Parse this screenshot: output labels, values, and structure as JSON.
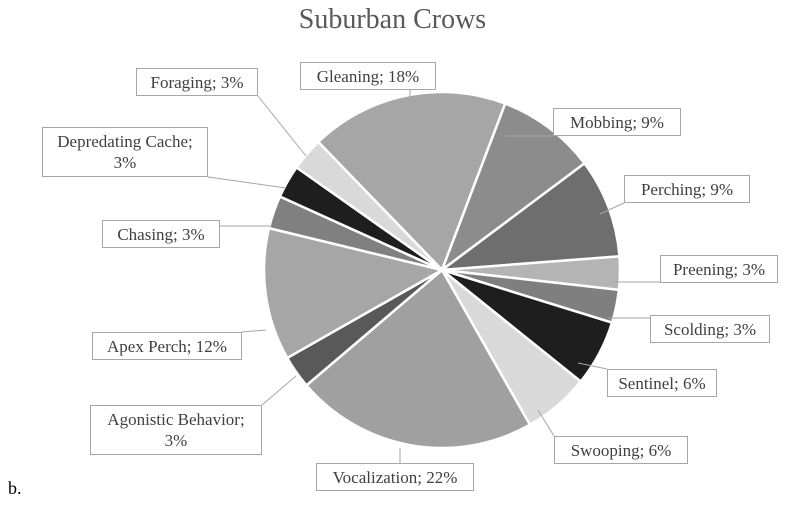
{
  "chart_data": {
    "type": "pie",
    "title": "Suburban Crows",
    "values": [
      18,
      9,
      9,
      3,
      3,
      6,
      6,
      22,
      3,
      12,
      3,
      3,
      3
    ],
    "value_labels": [
      "Gleaning; 18%",
      "Mobbing; 9%",
      "Perching; 9%",
      "Preening; 3%",
      "Scolding; 3%",
      "Sentinel; 6%",
      "Swooping; 6%",
      "Vocalization; 22%",
      "Agonistic Behavior;\n3%",
      "Apex Perch; 12%",
      "Chasing; 3%",
      "Depredating Cache;\n3%",
      "Foraging; 3%"
    ],
    "colors": [
      "#a6a6a6",
      "#8c8c8c",
      "#6e6e6e",
      "#b4b4b4",
      "#7f7f7f",
      "#1e1e1e",
      "#d9d9d9",
      "#a0a0a0",
      "#595959",
      "#a6a6a6",
      "#808080",
      "#1e1e1e",
      "#d9d9d9"
    ]
  },
  "panel_label": "b."
}
